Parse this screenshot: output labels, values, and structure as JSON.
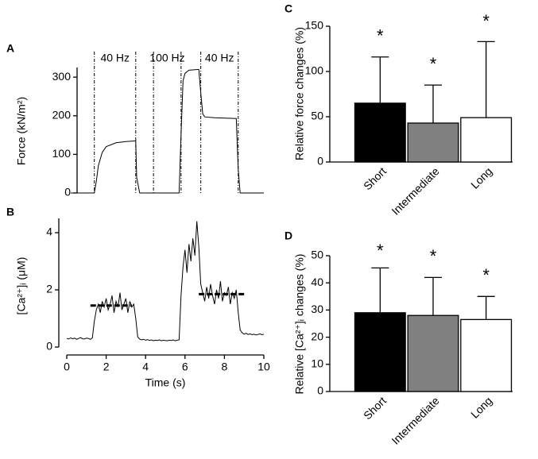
{
  "chart_data": [
    {
      "type": "line",
      "panel": "A",
      "ylabel": "Force (kN/m²)",
      "xlim": [
        0,
        10
      ],
      "ylim": [
        0,
        325
      ],
      "yticks": [
        0,
        100,
        200,
        300
      ],
      "color": "#000000",
      "x": [
        0.2,
        1.4,
        1.5,
        1.6,
        1.8,
        2.0,
        2.5,
        3.0,
        3.5,
        3.55,
        3.7,
        5.7,
        5.8,
        5.9,
        6.0,
        6.2,
        6.7,
        6.8,
        6.9,
        7.0,
        7.5,
        8.6,
        8.7,
        8.8,
        10
      ],
      "values": [
        0,
        0,
        30,
        70,
        105,
        120,
        130,
        133,
        135,
        40,
        0,
        0,
        150,
        290,
        310,
        318,
        320,
        260,
        205,
        197,
        195,
        193,
        60,
        0,
        0
      ],
      "stimulus": [
        {
          "label": "40 Hz",
          "start": 1.4,
          "end": 3.5
        },
        {
          "label": "100 Hz",
          "start": 4.4,
          "end": 5.8
        },
        {
          "label": "40 Hz",
          "start": 6.8,
          "end": 8.7
        }
      ]
    },
    {
      "type": "line",
      "panel": "B",
      "ylabel": "[Ca²⁺]ᵢ (μM)",
      "xlabel": "Time (s)",
      "xlim": [
        0,
        10
      ],
      "xticks": [
        0,
        2,
        4,
        6,
        8,
        10
      ],
      "ylim": [
        0,
        4.5
      ],
      "yticks": [
        0,
        2,
        4
      ],
      "color": "#000000",
      "x": [
        0.0,
        0.1,
        0.2,
        0.3,
        0.4,
        0.5,
        0.6,
        0.7,
        0.8,
        0.9,
        1.0,
        1.1,
        1.2,
        1.3,
        1.4,
        1.5,
        1.6,
        1.7,
        1.8,
        1.9,
        2.0,
        2.1,
        2.2,
        2.3,
        2.4,
        2.5,
        2.6,
        2.7,
        2.8,
        2.9,
        3.0,
        3.1,
        3.2,
        3.3,
        3.4,
        3.5,
        3.6,
        3.7,
        3.8,
        3.9,
        4.0,
        4.1,
        4.2,
        4.3,
        4.4,
        4.5,
        4.6,
        4.7,
        4.8,
        4.9,
        5.0,
        5.1,
        5.2,
        5.3,
        5.4,
        5.5,
        5.6,
        5.7,
        5.8,
        5.9,
        6.0,
        6.1,
        6.2,
        6.3,
        6.4,
        6.5,
        6.6,
        6.7,
        6.8,
        6.9,
        7.0,
        7.1,
        7.2,
        7.3,
        7.4,
        7.5,
        7.6,
        7.7,
        7.8,
        7.9,
        8.0,
        8.1,
        8.2,
        8.3,
        8.4,
        8.5,
        8.6,
        8.7,
        8.8,
        8.9,
        9.0,
        9.1,
        9.2,
        9.3,
        9.4,
        9.5,
        9.6,
        9.7,
        9.8,
        9.9,
        10.0
      ],
      "values": [
        0.3,
        0.28,
        0.32,
        0.29,
        0.31,
        0.27,
        0.3,
        0.33,
        0.29,
        0.28,
        0.31,
        0.3,
        0.27,
        0.32,
        0.9,
        1.3,
        1.5,
        1.2,
        1.6,
        1.4,
        1.7,
        1.3,
        1.5,
        1.8,
        1.2,
        1.6,
        1.4,
        1.9,
        1.3,
        1.5,
        1.7,
        1.2,
        1.6,
        1.4,
        1.5,
        1.0,
        0.35,
        0.28,
        0.25,
        0.27,
        0.24,
        0.26,
        0.23,
        0.25,
        0.22,
        0.24,
        0.23,
        0.25,
        0.22,
        0.24,
        0.23,
        0.22,
        0.24,
        0.23,
        0.25,
        0.22,
        0.24,
        0.25,
        1.8,
        2.8,
        3.4,
        2.6,
        3.6,
        3.0,
        3.8,
        3.2,
        4.4,
        3.5,
        2.2,
        1.9,
        1.6,
        2.1,
        1.7,
        2.2,
        1.8,
        1.5,
        2.0,
        1.7,
        2.3,
        1.6,
        1.9,
        1.8,
        2.1,
        1.5,
        1.9,
        1.7,
        2.0,
        1.2,
        0.6,
        0.5,
        0.45,
        0.48,
        0.44,
        0.46,
        0.43,
        0.45,
        0.42,
        0.44,
        0.46,
        0.43,
        0.45
      ],
      "mean_lines": [
        {
          "y": 1.45,
          "x": [
            1.2,
            3.3
          ]
        },
        {
          "y": 1.85,
          "x": [
            6.7,
            9.0
          ]
        }
      ]
    },
    {
      "type": "bar",
      "panel": "C",
      "ylabel": "Relative force changes (%)",
      "ylim": [
        0,
        150
      ],
      "yticks": [
        0,
        50,
        100,
        150
      ],
      "categories": [
        "Short",
        "Intermediate",
        "Long"
      ],
      "values": [
        65,
        43,
        49
      ],
      "errors": [
        51,
        42,
        84
      ],
      "colors": [
        "#000000",
        "#808080",
        "#ffffff"
      ],
      "significance": [
        "*",
        "*",
        "*"
      ]
    },
    {
      "type": "bar",
      "panel": "D",
      "ylabel": "Relative [Ca²⁺]ᵢ changes (%)",
      "ylim": [
        0,
        50
      ],
      "yticks": [
        0,
        10,
        20,
        30,
        40,
        50
      ],
      "categories": [
        "Short",
        "Intermediate",
        "Long"
      ],
      "values": [
        29,
        28,
        26.5
      ],
      "errors": [
        16.5,
        14,
        8.5
      ],
      "colors": [
        "#000000",
        "#808080",
        "#ffffff"
      ],
      "significance": [
        "*",
        "*",
        "*"
      ]
    }
  ]
}
